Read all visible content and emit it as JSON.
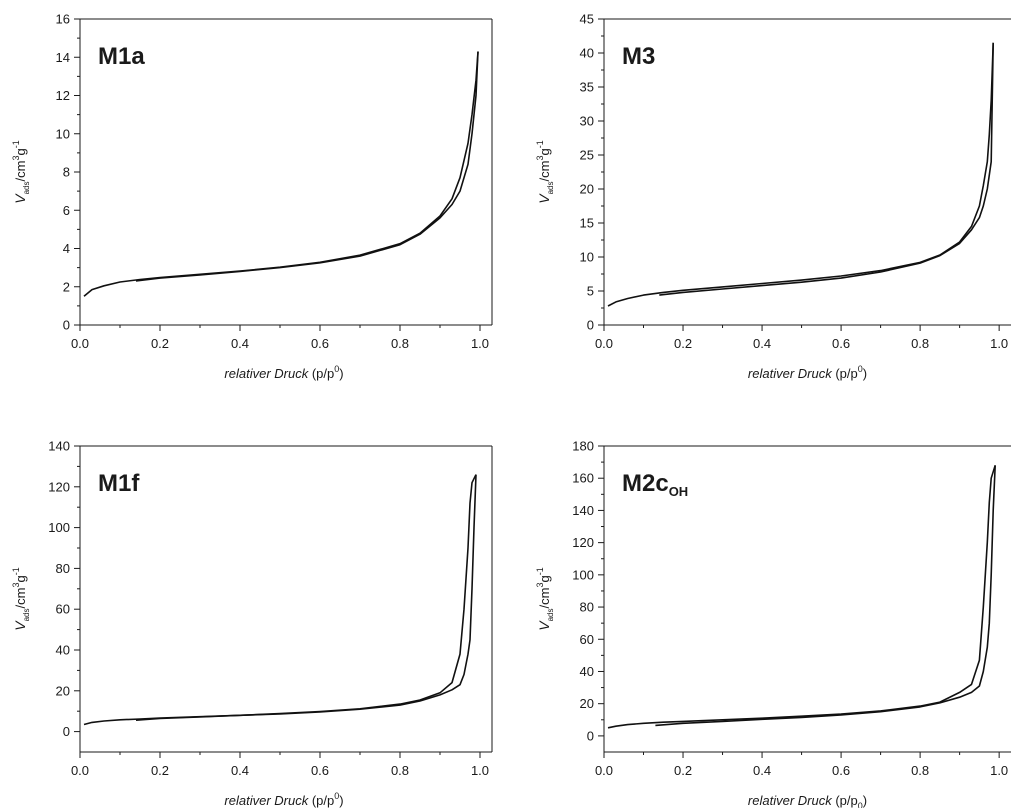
{
  "chart_data": [
    {
      "type": "line",
      "panel_label": "M1a",
      "panel_label_sub": "",
      "ylim": [
        0,
        16
      ],
      "yticks": [
        0,
        2,
        4,
        6,
        8,
        10,
        12,
        14,
        16
      ],
      "xlim": [
        0.0,
        1.0
      ],
      "xticks": [
        "0.0",
        "0.2",
        "0.4",
        "0.6",
        "0.8",
        "1.0"
      ],
      "xlabel_italic": "relativer Druck",
      "xlabel_rest": "(p/p",
      "xlabel_sup": "0",
      "xlabel_sub": "",
      "xlabel_close": ")",
      "ylabel_v": "V",
      "ylabel_sub": "ads",
      "ylabel_cm": "/cm",
      "ylabel_exp3": "3",
      "ylabel_g": "g",
      "ylabel_expm1": "-1",
      "series": [
        {
          "x": [
            0.01,
            0.03,
            0.06,
            0.1,
            0.15,
            0.2,
            0.3,
            0.4,
            0.5,
            0.6,
            0.7,
            0.8,
            0.85,
            0.9,
            0.93,
            0.95,
            0.97,
            0.98,
            0.99,
            0.995
          ],
          "y": [
            1.5,
            1.85,
            2.05,
            2.25,
            2.38,
            2.48,
            2.65,
            2.82,
            3.02,
            3.28,
            3.65,
            4.25,
            4.8,
            5.7,
            6.6,
            7.7,
            9.5,
            11.0,
            12.8,
            14.3
          ]
        },
        {
          "x": [
            0.995,
            0.99,
            0.98,
            0.97,
            0.95,
            0.93,
            0.9,
            0.85,
            0.8,
            0.7,
            0.6,
            0.5,
            0.4,
            0.3,
            0.2,
            0.14
          ],
          "y": [
            14.3,
            12.0,
            10.0,
            8.4,
            7.0,
            6.3,
            5.6,
            4.75,
            4.2,
            3.6,
            3.25,
            3.0,
            2.8,
            2.62,
            2.45,
            2.3
          ]
        }
      ]
    },
    {
      "type": "line",
      "panel_label": "M3",
      "panel_label_sub": "",
      "ylim": [
        0,
        45
      ],
      "yticks": [
        0,
        5,
        10,
        15,
        20,
        25,
        30,
        35,
        40,
        45
      ],
      "xlim": [
        0.0,
        1.0
      ],
      "xticks": [
        "0.0",
        "0.2",
        "0.4",
        "0.6",
        "0.8",
        "1.0"
      ],
      "xlabel_italic": "relativer Druck",
      "xlabel_rest": "(p/p",
      "xlabel_sup": "0",
      "xlabel_sub": "",
      "xlabel_close": ")",
      "ylabel_v": "V",
      "ylabel_sub": "ads",
      "ylabel_cm": "/cm",
      "ylabel_exp3": "3",
      "ylabel_g": "g",
      "ylabel_expm1": "-1",
      "series": [
        {
          "x": [
            0.01,
            0.03,
            0.06,
            0.1,
            0.15,
            0.2,
            0.3,
            0.4,
            0.5,
            0.6,
            0.7,
            0.8,
            0.85,
            0.9,
            0.93,
            0.95,
            0.96,
            0.97,
            0.975,
            0.98,
            0.985
          ],
          "y": [
            2.8,
            3.4,
            3.9,
            4.4,
            4.8,
            5.1,
            5.6,
            6.1,
            6.6,
            7.2,
            8.0,
            9.2,
            10.3,
            12.2,
            14.5,
            17.5,
            20.5,
            24.0,
            28.0,
            33.0,
            41.5
          ]
        },
        {
          "x": [
            0.985,
            0.98,
            0.97,
            0.96,
            0.95,
            0.93,
            0.9,
            0.85,
            0.8,
            0.7,
            0.6,
            0.5,
            0.4,
            0.3,
            0.2,
            0.14
          ],
          "y": [
            41.5,
            24.0,
            20.0,
            17.5,
            15.8,
            14.0,
            12.0,
            10.2,
            9.1,
            7.8,
            6.9,
            6.3,
            5.8,
            5.3,
            4.8,
            4.4
          ]
        }
      ]
    },
    {
      "type": "line",
      "panel_label": "M1f",
      "panel_label_sub": "",
      "ylim": [
        -10,
        140
      ],
      "yticks": [
        0,
        20,
        40,
        60,
        80,
        100,
        120,
        140
      ],
      "xlim": [
        0.0,
        1.0
      ],
      "xticks": [
        "0.0",
        "0.2",
        "0.4",
        "0.6",
        "0.8",
        "1.0"
      ],
      "xlabel_italic": "relativer Druck",
      "xlabel_rest": "(p/p",
      "xlabel_sup": "0",
      "xlabel_sub": "",
      "xlabel_close": ")",
      "ylabel_v": "V",
      "ylabel_sub": "ads",
      "ylabel_cm": "/cm",
      "ylabel_exp3": "3",
      "ylabel_g": "g",
      "ylabel_expm1": "-1",
      "series": [
        {
          "x": [
            0.01,
            0.03,
            0.06,
            0.1,
            0.15,
            0.2,
            0.3,
            0.4,
            0.5,
            0.6,
            0.7,
            0.8,
            0.85,
            0.9,
            0.93,
            0.95,
            0.96,
            0.97,
            0.975,
            0.98,
            0.99
          ],
          "y": [
            3.5,
            4.5,
            5.2,
            5.8,
            6.2,
            6.6,
            7.3,
            8.0,
            8.8,
            9.8,
            11.2,
            13.5,
            15.5,
            19.0,
            24.0,
            38.0,
            60.0,
            90.0,
            112.0,
            122.0,
            126.0
          ]
        },
        {
          "x": [
            0.99,
            0.985,
            0.98,
            0.975,
            0.97,
            0.96,
            0.95,
            0.93,
            0.9,
            0.85,
            0.8,
            0.7,
            0.6,
            0.5,
            0.4,
            0.3,
            0.2,
            0.14
          ],
          "y": [
            126.0,
            100.0,
            70.0,
            45.0,
            38.0,
            28.0,
            23.0,
            20.5,
            18.0,
            15.0,
            13.0,
            11.0,
            9.6,
            8.7,
            8.0,
            7.2,
            6.4,
            5.6
          ]
        }
      ]
    },
    {
      "type": "line",
      "panel_label": "M2c",
      "panel_label_sub": "OH",
      "ylim": [
        -10,
        180
      ],
      "yticks": [
        0,
        20,
        40,
        60,
        80,
        100,
        120,
        140,
        160,
        180
      ],
      "xlim": [
        0.0,
        1.0
      ],
      "xticks": [
        "0.0",
        "0.2",
        "0.4",
        "0.6",
        "0.8",
        "1.0"
      ],
      "xlabel_italic": "relativer Druck",
      "xlabel_rest": "(p/p",
      "xlabel_sup": "",
      "xlabel_sub": "0",
      "xlabel_close": ")",
      "ylabel_v": "V",
      "ylabel_sub": "ads",
      "ylabel_cm": "/cm",
      "ylabel_exp3": "3",
      "ylabel_g": "g",
      "ylabel_expm1": "-1",
      "series": [
        {
          "x": [
            0.01,
            0.03,
            0.06,
            0.1,
            0.15,
            0.2,
            0.3,
            0.4,
            0.5,
            0.6,
            0.7,
            0.8,
            0.85,
            0.9,
            0.93,
            0.95,
            0.96,
            0.97,
            0.975,
            0.98,
            0.99
          ],
          "y": [
            5.0,
            6.0,
            7.0,
            7.8,
            8.5,
            9.0,
            10.0,
            11.0,
            12.2,
            13.6,
            15.5,
            18.5,
            21.0,
            27.0,
            32.0,
            47.0,
            80.0,
            120.0,
            145.0,
            160.0,
            168.0
          ]
        },
        {
          "x": [
            0.99,
            0.985,
            0.98,
            0.975,
            0.97,
            0.96,
            0.95,
            0.93,
            0.9,
            0.85,
            0.8,
            0.7,
            0.6,
            0.5,
            0.4,
            0.3,
            0.2,
            0.13
          ],
          "y": [
            168.0,
            140.0,
            100.0,
            70.0,
            55.0,
            40.0,
            31.0,
            27.0,
            24.0,
            20.5,
            18.0,
            15.0,
            13.0,
            11.5,
            10.3,
            9.0,
            7.8,
            6.5
          ]
        }
      ]
    }
  ]
}
